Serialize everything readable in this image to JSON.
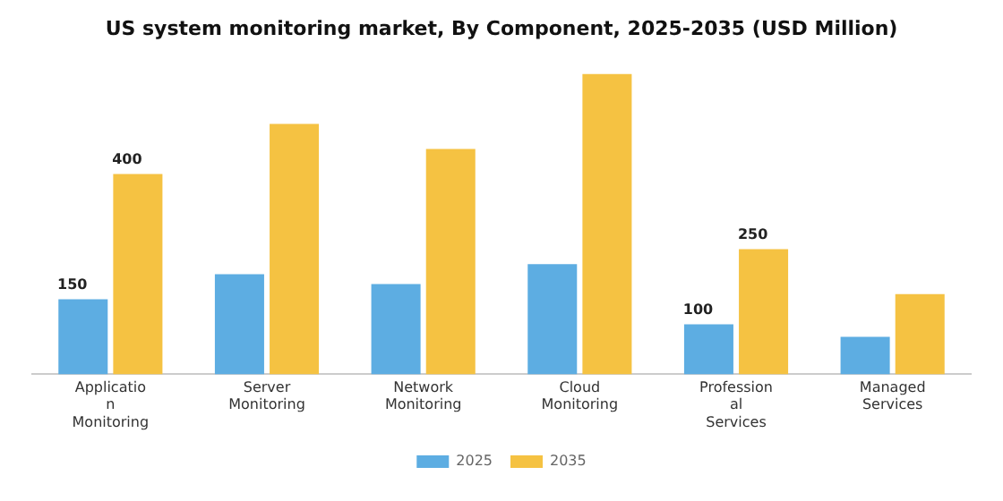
{
  "chart_data": {
    "type": "bar",
    "title": "US system monitoring market, By Component, 2025-2035 (USD Million)",
    "categories": [
      "Application Monitoring",
      "Server Monitoring",
      "Network Monitoring",
      "Cloud Monitoring",
      "Professional Services",
      "Managed Services"
    ],
    "series": [
      {
        "name": "2025",
        "color": "#5dade2",
        "values": [
          150,
          200,
          180,
          220,
          100,
          75
        ],
        "value_labels": [
          "150",
          null,
          null,
          null,
          "100",
          null
        ]
      },
      {
        "name": "2035",
        "color": "#f5c242",
        "values": [
          400,
          500,
          450,
          600,
          250,
          160
        ],
        "value_labels": [
          "400",
          null,
          null,
          null,
          "250",
          null
        ]
      }
    ],
    "legend": "bottom",
    "grid": false
  }
}
